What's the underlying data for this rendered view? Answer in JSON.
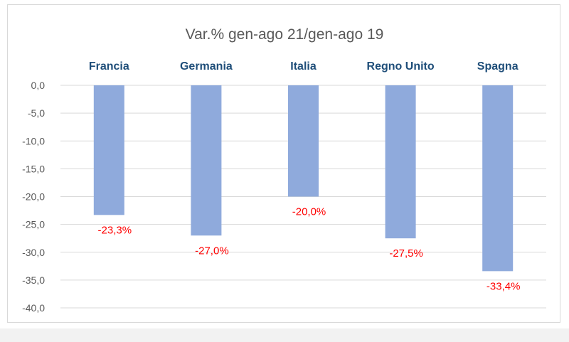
{
  "chart_data": {
    "type": "bar",
    "title": "Var.% gen-ago 21/gen-ago 19",
    "categories": [
      "Francia",
      "Germania",
      "Italia",
      "Regno Unito",
      "Spagna"
    ],
    "values": [
      -23.3,
      -27.0,
      -20.0,
      -27.5,
      -33.4
    ],
    "data_labels": [
      "-23,3%",
      "-27,0%",
      "-20,0%",
      "-27,5%",
      "-33,4%"
    ],
    "ylim": [
      -40,
      0
    ],
    "y_ticks": [
      0,
      -5,
      -10,
      -15,
      -20,
      -25,
      -30,
      -35,
      -40
    ],
    "y_tick_labels": [
      "0,0",
      "-5,0",
      "-10,0",
      "-15,0",
      "-20,0",
      "-25,0",
      "-30,0",
      "-35,0",
      "-40,0"
    ],
    "category_axis_position": "top",
    "grid": true,
    "legend": "none",
    "colors": {
      "bar": "#8faadc",
      "category_label": "#1f4e79",
      "data_label": "#ff0000",
      "gridline": "#d9d9d9",
      "title": "#595959"
    }
  }
}
